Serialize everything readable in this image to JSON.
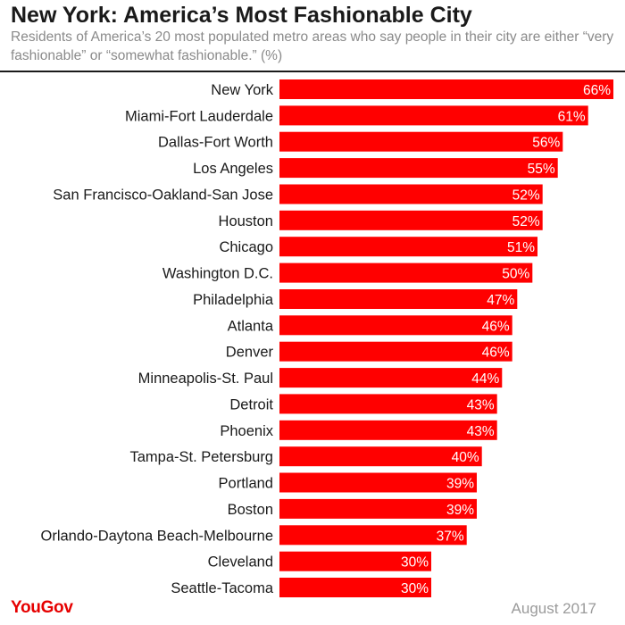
{
  "header": {
    "title": "New York: America’s Most Fashionable City",
    "subtitle": "Residents of America’s 20 most populated metro areas who say people in their city are either “very fashionable” or “somewhat fashionable.” (%)"
  },
  "footer": {
    "brand": "YouGov",
    "date": "August 2017"
  },
  "colors": {
    "bar": "#ff0000",
    "label_text": "#1a1a1a",
    "value_text": "#ffffff",
    "brand": "#e60000"
  },
  "chart_data": {
    "type": "bar",
    "orientation": "horizontal",
    "title": "New York: America’s Most Fashionable City",
    "categories": [
      "New York",
      "Miami-Fort Lauderdale",
      "Dallas-Fort Worth",
      "Los Angeles",
      "San Francisco-Oakland-San Jose",
      "Houston",
      "Chicago",
      "Washington D.C.",
      "Philadelphia",
      "Atlanta",
      "Denver",
      "Minneapolis-St. Paul",
      "Detroit",
      "Phoenix",
      "Tampa-St. Petersburg",
      "Portland",
      "Boston",
      "Orlando-Daytona Beach-Melbourne",
      "Cleveland",
      "Seattle-Tacoma"
    ],
    "values": [
      66,
      61,
      56,
      55,
      52,
      52,
      51,
      50,
      47,
      46,
      46,
      44,
      43,
      43,
      40,
      39,
      39,
      37,
      30,
      30
    ],
    "data_labels": [
      "66%",
      "61%",
      "56%",
      "55%",
      "52%",
      "52%",
      "51%",
      "50%",
      "47%",
      "46%",
      "46%",
      "44%",
      "43%",
      "43%",
      "40%",
      "39%",
      "39%",
      "37%",
      "30%",
      "30%"
    ],
    "xlim": [
      0,
      66
    ],
    "grid": false,
    "legend": "none"
  }
}
